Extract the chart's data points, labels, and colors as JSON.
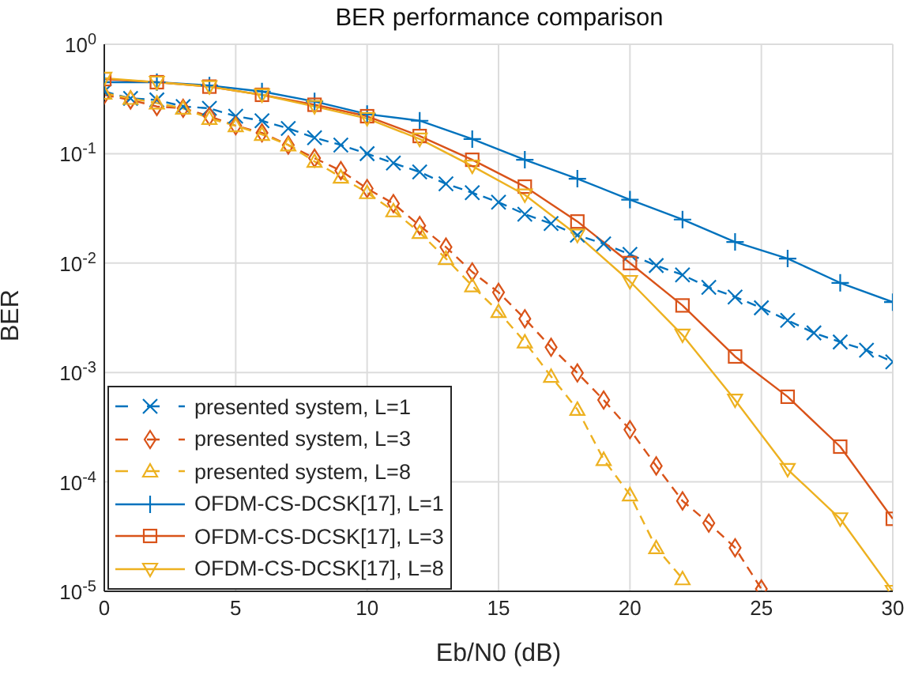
{
  "chart_data": {
    "type": "line",
    "title": "BER performance comparison",
    "xlabel": "Eb/N0 (dB)",
    "ylabel": "BER",
    "log": "y",
    "grid": true,
    "legend": "bottom left",
    "xlim": [
      0,
      30
    ],
    "xticks": [
      0,
      5,
      10,
      15,
      20,
      25,
      30
    ],
    "ylim": [
      1e-05,
      1
    ],
    "yticks": [
      {
        "value": 1e-05,
        "label": "10$^{-5}$"
      },
      {
        "value": 0.0001,
        "label": "10$^{-4}$"
      },
      {
        "value": 0.001,
        "label": "10$^{-3}$"
      },
      {
        "value": 0.01,
        "label": "10$^{-2}$"
      },
      {
        "value": 0.1,
        "label": "10$^{-1}$"
      },
      {
        "value": 1,
        "label": "10$^{0}$"
      }
    ],
    "series": [
      {
        "name": "presented system, L=1",
        "color": "#0072bd",
        "marker": "cross",
        "line_style": "dashed",
        "x": [
          0,
          1,
          2,
          3,
          4,
          5,
          6,
          7,
          8,
          9,
          10,
          11,
          12,
          13,
          14,
          15,
          16,
          17,
          18,
          19,
          20,
          21,
          22,
          23,
          24,
          25,
          26,
          27,
          28,
          29,
          30
        ],
        "values": [
          0.37,
          0.32,
          0.31,
          0.27,
          0.26,
          0.22,
          0.2,
          0.17,
          0.14,
          0.12,
          0.1,
          0.082,
          0.068,
          0.053,
          0.044,
          0.036,
          0.028,
          0.023,
          0.018,
          0.015,
          0.012,
          0.0095,
          0.0078,
          0.006,
          0.0049,
          0.0039,
          0.003,
          0.0023,
          0.0019,
          0.0016,
          0.00125
        ]
      },
      {
        "name": "presented system, L=3",
        "color": "#d95319",
        "marker": "diamond",
        "line_style": "dashed",
        "x": [
          0,
          1,
          2,
          3,
          4,
          5,
          6,
          7,
          8,
          9,
          10,
          11,
          12,
          13,
          14,
          15,
          16,
          17,
          18,
          19,
          20,
          21,
          22,
          23,
          24,
          25
        ],
        "values": [
          0.345,
          0.31,
          0.27,
          0.26,
          0.22,
          0.18,
          0.155,
          0.12,
          0.091,
          0.07,
          0.048,
          0.035,
          0.022,
          0.014,
          0.0083,
          0.0054,
          0.0031,
          0.0017,
          0.00099,
          0.00056,
          0.0003,
          0.00014,
          6.7e-05,
          4.2e-05,
          2.5e-05,
          1.05e-05
        ]
      },
      {
        "name": "presented system, L=8",
        "color": "#edb120",
        "marker": "triangle",
        "line_style": "dashed",
        "x": [
          0,
          1,
          2,
          3,
          4,
          5,
          6,
          7,
          8,
          9,
          10,
          11,
          12,
          13,
          14,
          15,
          16,
          17,
          18,
          19,
          20,
          21,
          22
        ],
        "values": [
          0.357,
          0.32,
          0.29,
          0.26,
          0.21,
          0.18,
          0.15,
          0.12,
          0.085,
          0.061,
          0.044,
          0.03,
          0.019,
          0.011,
          0.0062,
          0.0036,
          0.0019,
          0.00092,
          0.00046,
          0.00016,
          7.6e-05,
          2.5e-05,
          1.3e-05
        ]
      },
      {
        "name": "OFDM-CS-DCSK[17], L=1",
        "color": "#0072bd",
        "marker": "plus",
        "line_style": "solid",
        "x": [
          0,
          2,
          4,
          6,
          8,
          10,
          12,
          14,
          16,
          18,
          20,
          22,
          24,
          26,
          28,
          30
        ],
        "values": [
          0.45,
          0.45,
          0.42,
          0.37,
          0.3,
          0.23,
          0.2,
          0.136,
          0.088,
          0.059,
          0.038,
          0.025,
          0.0156,
          0.011,
          0.0066,
          0.0044
        ]
      },
      {
        "name": "OFDM-CS-DCSK[17], L=3",
        "color": "#d95319",
        "marker": "square",
        "line_style": "solid",
        "x": [
          0,
          2,
          4,
          6,
          8,
          10,
          12,
          14,
          16,
          18,
          20,
          22,
          24,
          26,
          28,
          30
        ],
        "values": [
          0.48,
          0.45,
          0.41,
          0.345,
          0.28,
          0.22,
          0.145,
          0.088,
          0.05,
          0.024,
          0.01,
          0.0041,
          0.0014,
          0.0006,
          0.00021,
          4.6e-05
        ]
      },
      {
        "name": "OFDM-CS-DCSK[17], L=8",
        "color": "#edb120",
        "marker": "triangle-down",
        "line_style": "solid",
        "x": [
          0,
          2,
          4,
          6,
          8,
          10,
          12,
          14,
          16,
          18,
          20,
          22,
          24,
          26,
          28,
          30
        ],
        "values": [
          0.49,
          0.45,
          0.41,
          0.345,
          0.27,
          0.21,
          0.136,
          0.077,
          0.042,
          0.018,
          0.0068,
          0.0022,
          0.00056,
          0.00013,
          4.6e-05,
          1e-05
        ]
      }
    ]
  }
}
